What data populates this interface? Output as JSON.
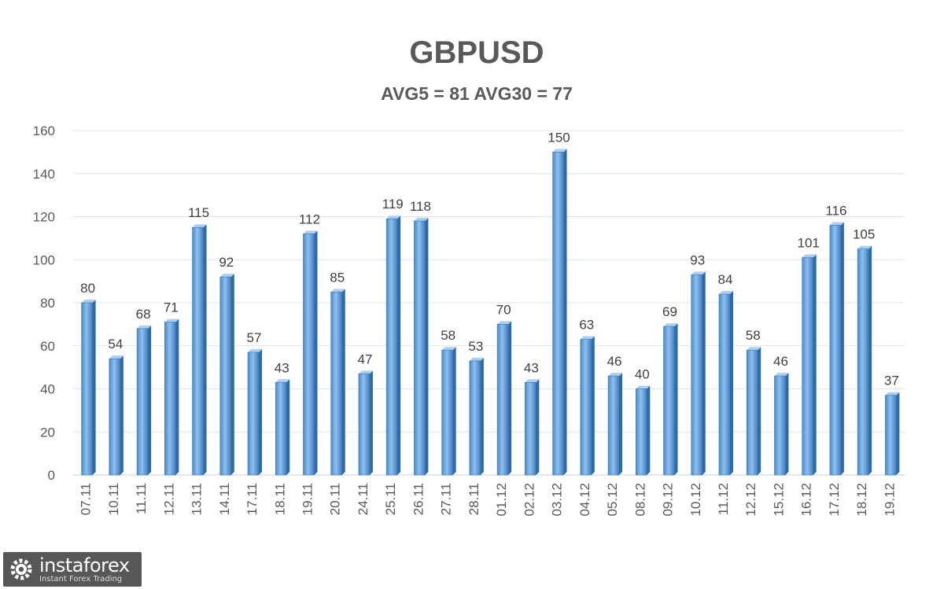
{
  "chart_data": {
    "type": "bar",
    "title": "GBPUSD",
    "subtitle": "AVG5 = 81 AVG30 = 77",
    "categories": [
      "07.11",
      "10.11",
      "11.11",
      "12.11",
      "13.11",
      "14.11",
      "17.11",
      "18.11",
      "19.11",
      "20.11",
      "24.11",
      "25.11",
      "26.11",
      "27.11",
      "28.11",
      "01.12",
      "02.12",
      "03.12",
      "04.12",
      "05.12",
      "08.12",
      "09.12",
      "10.12",
      "11.12",
      "12.12",
      "15.12",
      "16.12",
      "17.12",
      "18.12",
      "19.12"
    ],
    "values": [
      80,
      54,
      68,
      71,
      115,
      92,
      57,
      43,
      112,
      85,
      47,
      119,
      118,
      58,
      53,
      70,
      43,
      150,
      63,
      46,
      40,
      69,
      93,
      84,
      58,
      46,
      101,
      116,
      105,
      37
    ],
    "ylim": [
      0,
      160
    ],
    "yticks": [
      0,
      20,
      40,
      60,
      80,
      100,
      120,
      140,
      160
    ],
    "grid": true,
    "legend": "none",
    "bar_color": "#5b9bd5"
  },
  "logo": {
    "name": "instaforex",
    "tagline": "Instant Forex Trading",
    "icon": "gear-logo-icon"
  }
}
